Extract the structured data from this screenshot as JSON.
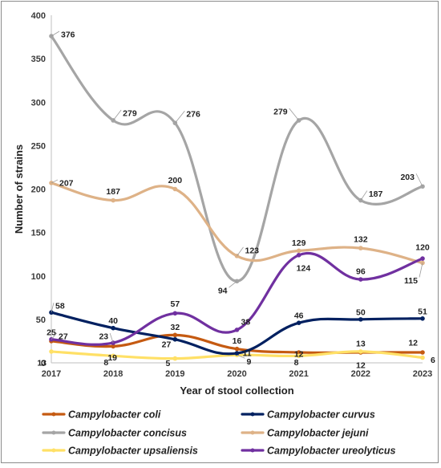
{
  "chart_data": {
    "type": "line",
    "xlabel": "Year of stool collection",
    "ylabel": "Number of strains",
    "ylim": [
      0,
      400
    ],
    "yticks": [
      0,
      50,
      100,
      150,
      200,
      250,
      300,
      350,
      400
    ],
    "x": [
      "2017",
      "2018",
      "2019",
      "2020",
      "2021",
      "2022",
      "2023"
    ],
    "grid": false,
    "smooth": true,
    "legend_position": "bottom",
    "series": [
      {
        "name": "Campylobacter coli",
        "color": "#c55a11",
        "values": [
          25,
          19,
          32,
          16,
          12,
          12,
          12
        ]
      },
      {
        "name": "Campylobacter curvus",
        "color": "#002060",
        "values": [
          58,
          40,
          27,
          11,
          46,
          50,
          51
        ]
      },
      {
        "name": "Campylobacter concisus",
        "color": "#a5a5a5",
        "values": [
          376,
          279,
          276,
          94,
          279,
          187,
          203
        ]
      },
      {
        "name": "Campylobacter jejuni",
        "color": "#deb287",
        "values": [
          207,
          187,
          200,
          123,
          129,
          132,
          115
        ]
      },
      {
        "name": "Campylobacter upsaliensis",
        "color": "#ffe066",
        "values": [
          13,
          8,
          5,
          9,
          8,
          13,
          6
        ]
      },
      {
        "name": "Campylobacter ureolyticus",
        "color": "#7030a0",
        "values": [
          27,
          23,
          57,
          38,
          124,
          96,
          120
        ]
      }
    ]
  }
}
